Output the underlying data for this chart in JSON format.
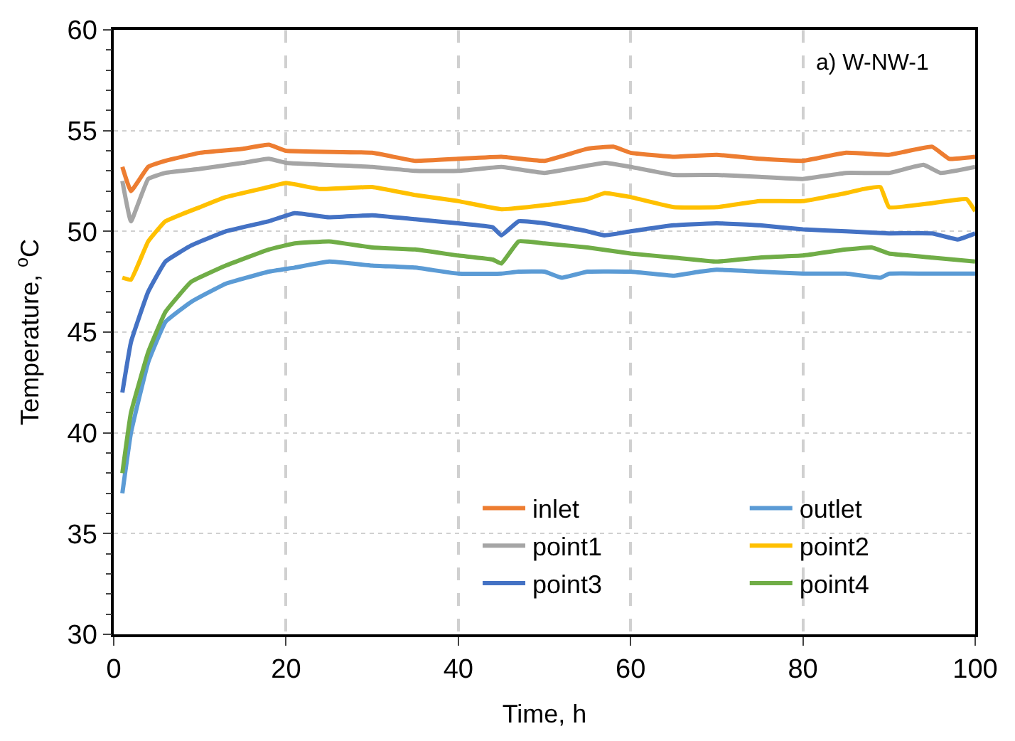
{
  "chart_data": {
    "type": "line",
    "xlabel": "Time, h",
    "ylabel": "Temperature, $^{o}$C",
    "annotations": [
      "a) W-NW-1"
    ],
    "xlim": [
      0,
      100
    ],
    "xticks": [
      0,
      20,
      40,
      60,
      80,
      100
    ],
    "ylim": [
      30,
      60
    ],
    "yticks": [
      30,
      35,
      40,
      45,
      50,
      55,
      60
    ],
    "grid": true,
    "legend": "bottom right",
    "marker": "none",
    "line_style": "solid",
    "series": [
      {
        "name": "inlet",
        "color": "#ed7d31",
        "x": [
          1,
          2,
          4,
          6,
          10,
          15,
          18,
          20,
          30,
          35,
          40,
          45,
          50,
          55,
          58,
          60,
          65,
          70,
          75,
          80,
          85,
          90,
          95,
          97,
          100
        ],
        "values": [
          53.2,
          52.0,
          53.2,
          53.5,
          53.9,
          54.1,
          54.3,
          54.0,
          53.9,
          53.5,
          53.6,
          53.7,
          53.5,
          54.1,
          54.2,
          53.9,
          53.7,
          53.8,
          53.6,
          53.5,
          53.9,
          53.8,
          54.2,
          53.6,
          53.7
        ]
      },
      {
        "name": "outlet",
        "color": "#5b9bd5",
        "x": [
          1,
          2,
          4,
          6,
          9,
          13,
          18,
          21,
          25,
          30,
          35,
          40,
          45,
          47,
          50,
          52,
          55,
          60,
          65,
          68,
          70,
          75,
          80,
          85,
          89,
          90,
          95,
          100
        ],
        "values": [
          37,
          40,
          43.5,
          45.5,
          46.5,
          47.4,
          48.0,
          48.2,
          48.5,
          48.3,
          48.2,
          47.9,
          47.9,
          48.0,
          48.0,
          47.7,
          48.0,
          48.0,
          47.8,
          48.0,
          48.1,
          48.0,
          47.9,
          47.9,
          47.7,
          47.9,
          47.9,
          47.9
        ]
      },
      {
        "name": "point1",
        "color": "#a5a5a5",
        "x": [
          1,
          2,
          4,
          6,
          10,
          15,
          18,
          20,
          30,
          35,
          40,
          45,
          50,
          57,
          60,
          65,
          70,
          75,
          80,
          85,
          90,
          94,
          96,
          100
        ],
        "values": [
          52.5,
          50.5,
          52.6,
          52.9,
          53.1,
          53.4,
          53.6,
          53.4,
          53.2,
          53.0,
          53.0,
          53.2,
          52.9,
          53.4,
          53.2,
          52.8,
          52.8,
          52.7,
          52.6,
          52.9,
          52.9,
          53.3,
          52.9,
          53.2
        ]
      },
      {
        "name": "point2",
        "color": "#ffc000",
        "x": [
          1,
          2,
          4,
          6,
          10,
          13,
          18,
          20,
          24,
          30,
          35,
          40,
          45,
          50,
          55,
          57,
          60,
          65,
          70,
          75,
          80,
          85,
          87,
          89,
          90,
          95,
          99,
          100
        ],
        "values": [
          47.7,
          47.6,
          49.5,
          50.5,
          51.2,
          51.7,
          52.2,
          52.4,
          52.1,
          52.2,
          51.8,
          51.5,
          51.1,
          51.3,
          51.6,
          51.9,
          51.7,
          51.2,
          51.2,
          51.5,
          51.5,
          51.9,
          52.1,
          52.2,
          51.2,
          51.4,
          51.6,
          51.0
        ]
      },
      {
        "name": "point3",
        "color": "#4472c4",
        "x": [
          1,
          2,
          4,
          6,
          9,
          13,
          18,
          21,
          25,
          30,
          35,
          40,
          44,
          45,
          47,
          50,
          55,
          57,
          60,
          65,
          70,
          75,
          80,
          85,
          90,
          95,
          98,
          100
        ],
        "values": [
          42,
          44.5,
          47,
          48.5,
          49.3,
          50.0,
          50.5,
          50.9,
          50.7,
          50.8,
          50.6,
          50.4,
          50.2,
          49.8,
          50.5,
          50.4,
          50.0,
          49.8,
          50.0,
          50.3,
          50.4,
          50.3,
          50.1,
          50.0,
          49.9,
          49.9,
          49.6,
          49.9
        ]
      },
      {
        "name": "point4",
        "color": "#70ad47",
        "x": [
          1,
          2,
          4,
          6,
          9,
          13,
          18,
          21,
          25,
          30,
          35,
          40,
          44,
          45,
          47,
          50,
          55,
          60,
          65,
          70,
          75,
          80,
          85,
          88,
          90,
          95,
          100
        ],
        "values": [
          38,
          41,
          44,
          46,
          47.5,
          48.3,
          49.1,
          49.4,
          49.5,
          49.2,
          49.1,
          48.8,
          48.6,
          48.4,
          49.5,
          49.4,
          49.2,
          48.9,
          48.7,
          48.5,
          48.7,
          48.8,
          49.1,
          49.2,
          48.9,
          48.7,
          48.5
        ]
      }
    ]
  }
}
